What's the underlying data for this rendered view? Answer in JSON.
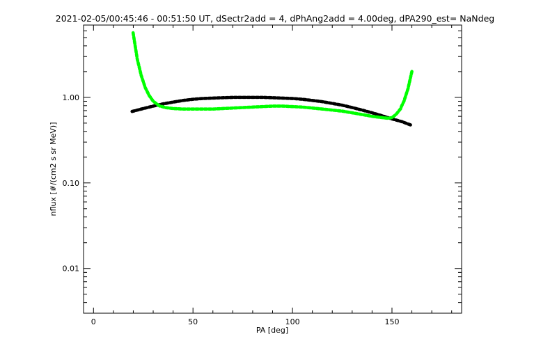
{
  "chart_data": {
    "type": "scatter",
    "title": "2021-02-05/00:45:46 - 00:51:50 UT, dSectr2add = 4, dPhAng2add = 4.00deg, dPA290_est=   NaNdeg",
    "xlabel": "PA [deg]",
    "ylabel": "nflux [#/(cm2 s sr MeV)]",
    "xlim": [
      -5,
      185
    ],
    "ylim": [
      0.003,
      7
    ],
    "yscale": "log",
    "x_ticks": [
      0,
      50,
      100,
      150
    ],
    "x_tick_labels": [
      "0",
      "50",
      "100",
      "150"
    ],
    "y_ticks": [
      0.01,
      0.1,
      1.0
    ],
    "y_tick_labels": [
      "0.01",
      "0.10",
      "1.00"
    ],
    "grid": false,
    "series": [
      {
        "color": "#000000",
        "x": [
          20,
          25,
          30,
          35,
          40,
          45,
          50,
          55,
          60,
          65,
          70,
          75,
          80,
          85,
          90,
          95,
          100,
          105,
          110,
          115,
          120,
          125,
          130,
          135,
          140,
          145,
          150,
          155,
          160
        ],
        "y": [
          0.69,
          0.74,
          0.79,
          0.84,
          0.88,
          0.92,
          0.95,
          0.97,
          0.98,
          0.99,
          1.0,
          1.0,
          1.0,
          1.0,
          0.99,
          0.98,
          0.97,
          0.95,
          0.92,
          0.89,
          0.85,
          0.81,
          0.76,
          0.71,
          0.66,
          0.61,
          0.56,
          0.52,
          0.47
        ]
      },
      {
        "color": "#00ff00",
        "x": [
          20,
          22,
          24,
          26,
          28,
          30,
          33,
          36,
          40,
          45,
          50,
          55,
          60,
          65,
          70,
          75,
          80,
          85,
          90,
          95,
          100,
          105,
          110,
          115,
          120,
          125,
          130,
          135,
          140,
          145,
          148,
          150,
          152,
          154,
          156,
          158,
          160
        ],
        "y": [
          5.5,
          2.8,
          1.8,
          1.3,
          1.05,
          0.9,
          0.8,
          0.76,
          0.74,
          0.73,
          0.73,
          0.73,
          0.73,
          0.74,
          0.75,
          0.76,
          0.77,
          0.78,
          0.79,
          0.79,
          0.78,
          0.77,
          0.75,
          0.73,
          0.71,
          0.69,
          0.66,
          0.63,
          0.6,
          0.58,
          0.57,
          0.58,
          0.63,
          0.72,
          0.9,
          1.25,
          2.0
        ]
      }
    ]
  }
}
